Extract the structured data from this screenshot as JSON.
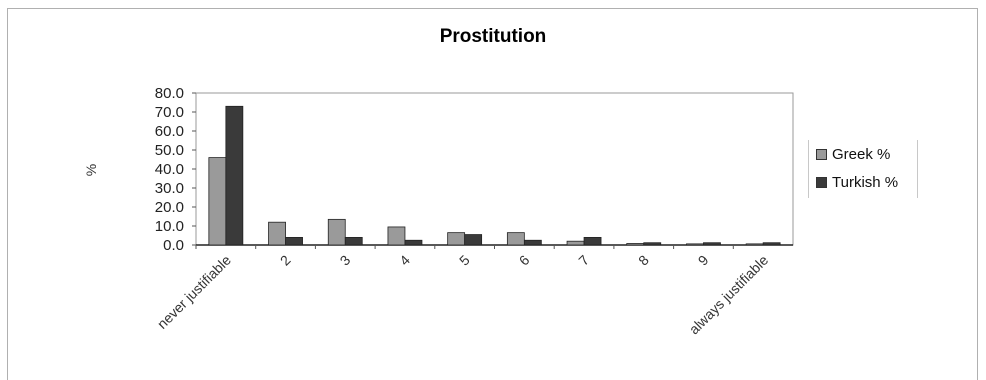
{
  "chart_data": {
    "type": "bar",
    "title": "Prostitution",
    "xlabel": "",
    "ylabel": "%",
    "ylim": [
      0,
      80
    ],
    "yticks": [
      "0.0",
      "10.0",
      "20.0",
      "30.0",
      "40.0",
      "50.0",
      "60.0",
      "70.0",
      "80.0"
    ],
    "categories": [
      "never justifiable",
      "2",
      "3",
      "4",
      "5",
      "6",
      "7",
      "8",
      "9",
      "always justifiable"
    ],
    "series": [
      {
        "name": "Greek %",
        "color": "#9a9a9a",
        "values": [
          46.0,
          12.0,
          13.5,
          9.5,
          6.5,
          6.5,
          2.0,
          0.8,
          0.6,
          0.6
        ]
      },
      {
        "name": "Turkish %",
        "color": "#3a3a3a",
        "values": [
          73.0,
          4.0,
          4.0,
          2.5,
          5.5,
          2.5,
          4.0,
          1.2,
          1.2,
          1.2
        ]
      }
    ],
    "grid": false,
    "legend": "right"
  }
}
